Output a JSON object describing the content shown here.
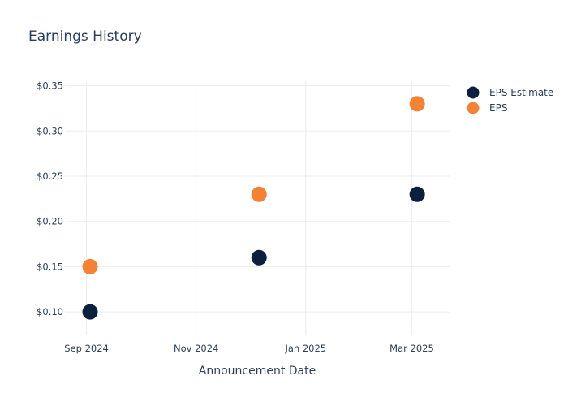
{
  "chart_data": {
    "type": "scatter",
    "title": "Earnings History",
    "xlabel": "Announcement Date",
    "ylabel": "",
    "x": [
      "2024-09-03",
      "2024-12-06",
      "2025-03-04"
    ],
    "xlim": [
      "2024-08-20",
      "2025-03-22"
    ],
    "ylim": [
      0.075,
      0.355
    ],
    "x_ticks": [
      {
        "date": "2024-09-01",
        "label": "Sep 2024"
      },
      {
        "date": "2024-11-01",
        "label": "Nov 2024"
      },
      {
        "date": "2025-01-01",
        "label": "Jan 2025"
      },
      {
        "date": "2025-03-01",
        "label": "Mar 2025"
      }
    ],
    "y_ticks": [
      {
        "value": 0.1,
        "label": "$0.10"
      },
      {
        "value": 0.15,
        "label": "$0.15"
      },
      {
        "value": 0.2,
        "label": "$0.20"
      },
      {
        "value": 0.25,
        "label": "$0.25"
      },
      {
        "value": 0.3,
        "label": "$0.30"
      },
      {
        "value": 0.35,
        "label": "$0.35"
      }
    ],
    "grid": true,
    "legend_position": "top-right",
    "series": [
      {
        "name": "EPS Estimate",
        "color": "#0b1f3f",
        "values": [
          0.1,
          0.16,
          0.23
        ]
      },
      {
        "name": "EPS",
        "color": "#f58233",
        "values": [
          0.15,
          0.23,
          0.33
        ]
      }
    ]
  }
}
